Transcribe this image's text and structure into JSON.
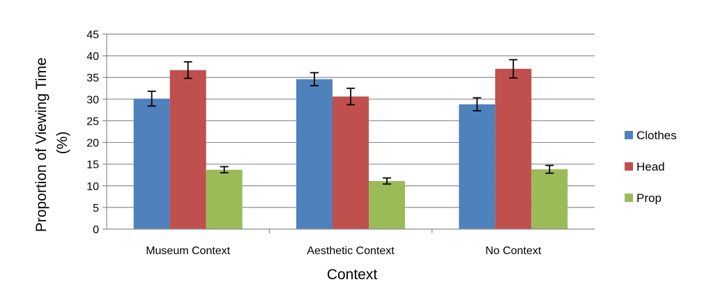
{
  "chart_data": {
    "type": "bar",
    "title": "",
    "xlabel": "Context",
    "ylabel_lines": [
      "Proportion of Viewing Time",
      "(%)"
    ],
    "categories": [
      "Museum Context",
      "Aesthetic Context",
      "No Context"
    ],
    "series": [
      {
        "name": "Clothes",
        "color": "#4F81BD",
        "values": [
          30.1,
          34.6,
          28.8
        ],
        "errors": [
          1.7,
          1.5,
          1.5
        ]
      },
      {
        "name": "Head",
        "color": "#C0504D",
        "values": [
          36.7,
          30.6,
          37.0
        ],
        "errors": [
          1.9,
          1.9,
          2.1
        ]
      },
      {
        "name": "Prop",
        "color": "#9BBB59",
        "values": [
          13.7,
          11.1,
          13.8
        ],
        "errors": [
          0.7,
          0.7,
          0.9
        ]
      }
    ],
    "ylim": [
      0,
      45
    ],
    "yticks": [
      0,
      5,
      10,
      15,
      20,
      25,
      30,
      35,
      40,
      45
    ],
    "grid": true,
    "legend_position": "right"
  }
}
